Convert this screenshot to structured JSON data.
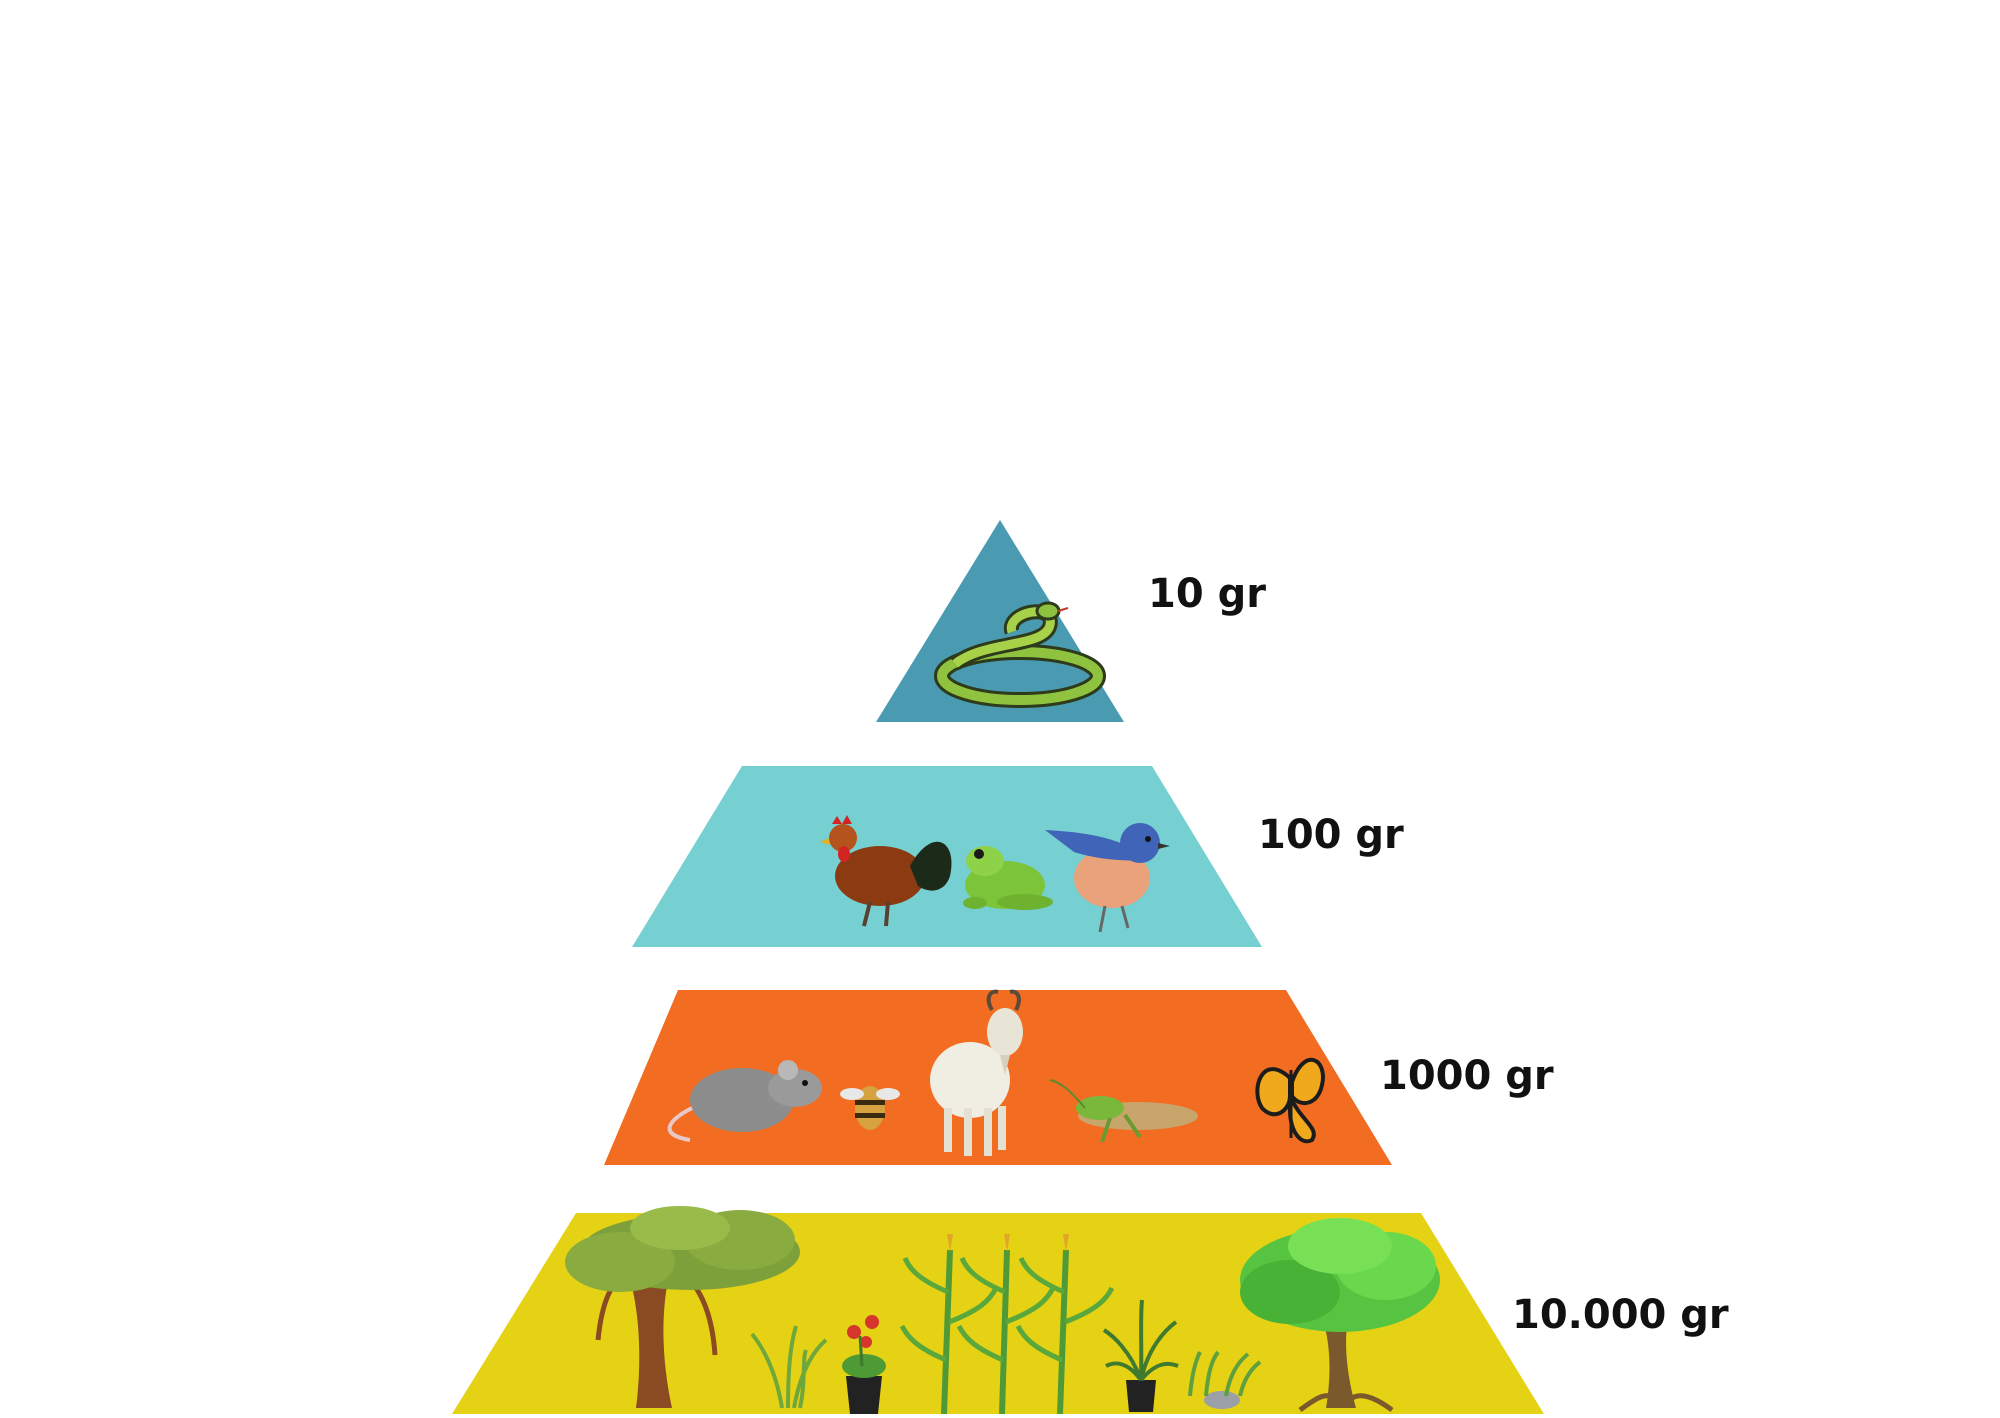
{
  "diagram": {
    "levels": [
      {
        "mass": "10 gr",
        "color": "#4a9bb2",
        "organisms": [
          "snake-icon"
        ]
      },
      {
        "mass": "100 gr",
        "color": "#76d0d1",
        "organisms": [
          "rooster-icon",
          "frog-icon",
          "bluebird-icon"
        ]
      },
      {
        "mass": "1000 gr",
        "color": "#f26d21",
        "organisms": [
          "rat-icon",
          "bee-icon",
          "goat-icon",
          "grasshopper-icon",
          "butterfly-icon"
        ]
      },
      {
        "mass": "10.000 gr",
        "color": "#e6d215",
        "organisms": [
          "banyan-tree-icon",
          "grass-icon",
          "potted-flower-icon",
          "corn-plant-icon",
          "corn-plant-icon",
          "corn-plant-icon",
          "potted-palm-icon",
          "shrub-icon",
          "green-tree-icon"
        ]
      }
    ]
  }
}
